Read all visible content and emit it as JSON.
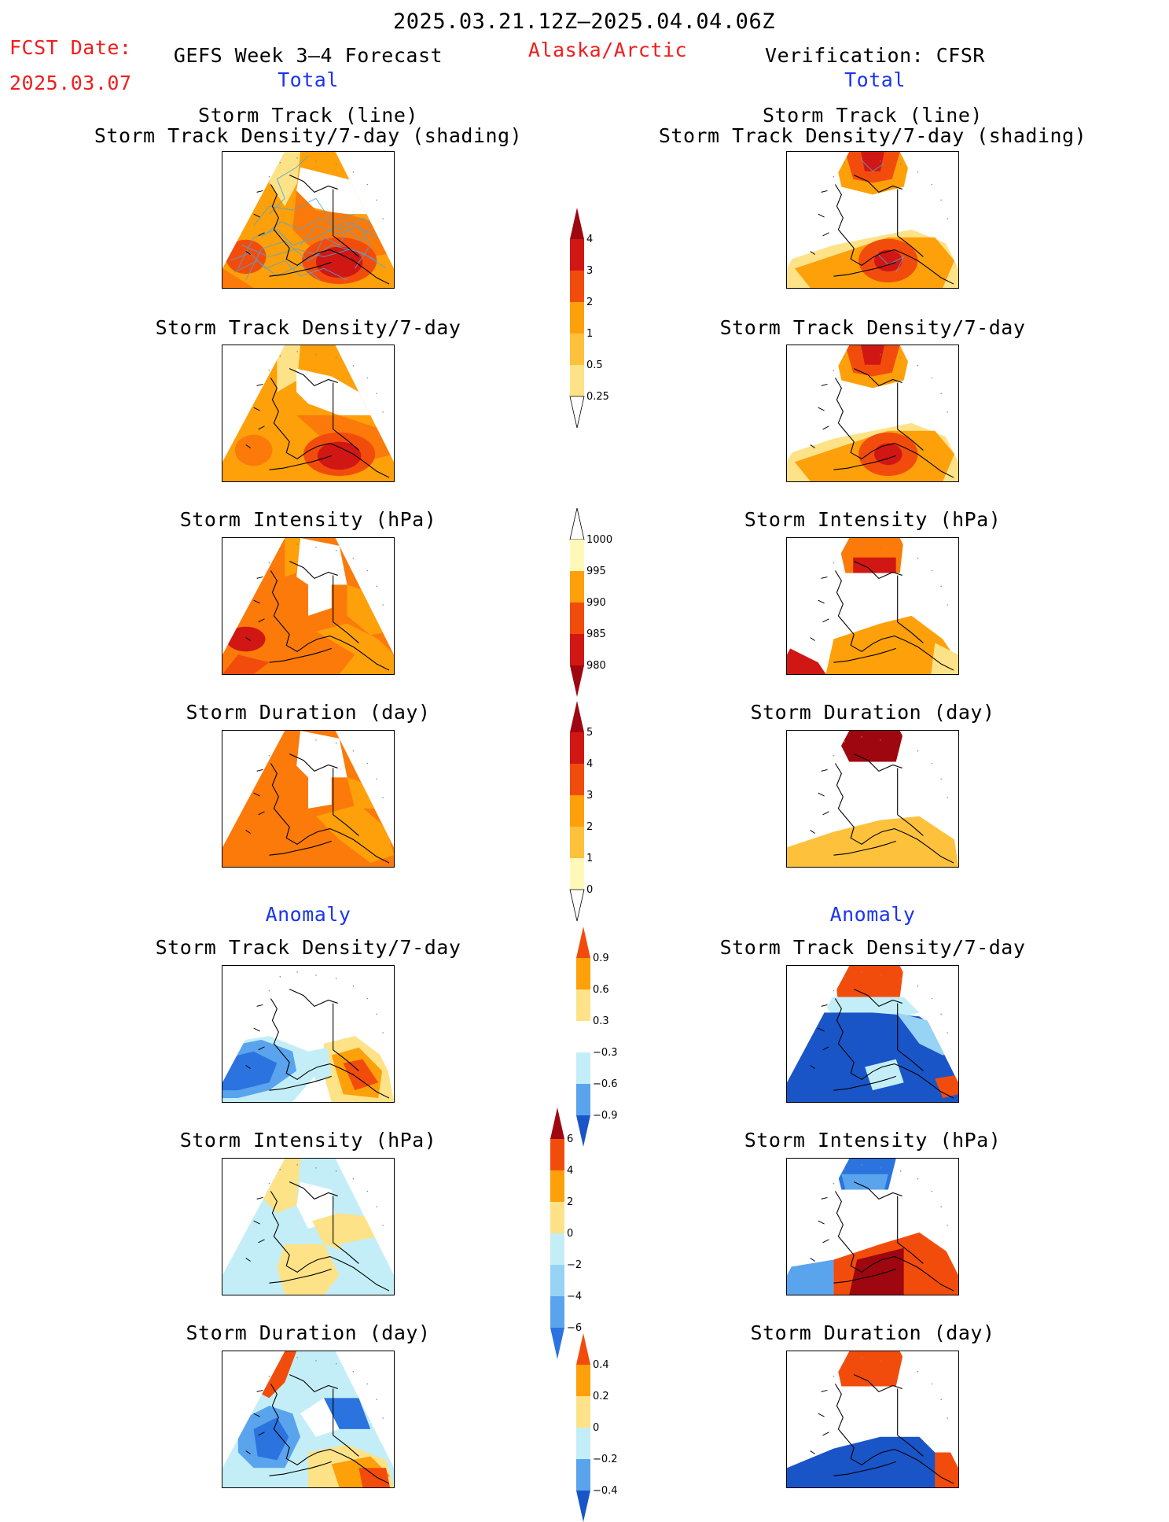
{
  "header": {
    "date_range": "2025.03.21.12Z–2025.04.04.06Z",
    "fcst_label": "FCST Date:",
    "fcst_date": "2025.03.07",
    "left_title": "GEFS Week 3–4 Forecast",
    "region": "Alaska/Arctic",
    "right_title": "Verification: CFSR",
    "left_total": "Total",
    "right_total": "Total",
    "left_anomaly": "Anomaly",
    "right_anomaly": "Anomaly"
  },
  "panel_titles": {
    "track_line": "Storm Track (line)",
    "track_shading": "Storm Track Density/7-day (shading)",
    "density": "Storm Track Density/7-day",
    "intensity": "Storm Intensity (hPa)",
    "duration": "Storm Duration (day)"
  },
  "colorbars": {
    "density_total": [
      "4",
      "3",
      "2",
      "1",
      "0.5",
      "0.25"
    ],
    "intensity_total": [
      "1000",
      "995",
      "990",
      "985",
      "980"
    ],
    "duration_total": [
      "5",
      "4",
      "3",
      "2",
      "1",
      "0"
    ],
    "density_anomaly": [
      "0.9",
      "0.6",
      "0.3",
      "−0.3",
      "−0.6",
      "−0.9"
    ],
    "intensity_anomaly": [
      "6",
      "4",
      "2",
      "0",
      "−2",
      "−4",
      "−6"
    ],
    "duration_anomaly": [
      "0.4",
      "0.2",
      "0",
      "−0.2",
      "−0.4"
    ]
  },
  "colors": {
    "title_red": "#f21c1c",
    "title_blue": "#1a35f0",
    "warm_scale": [
      "#fff8b8",
      "#fde287",
      "#fdc13c",
      "#fda00a",
      "#fb7a0a",
      "#f24c0c",
      "#d11714",
      "#9e0610"
    ],
    "cool_scale": [
      "#c4eef7",
      "#96d3f5",
      "#5aa4ee",
      "#2b73df",
      "#1a55c8"
    ]
  }
}
